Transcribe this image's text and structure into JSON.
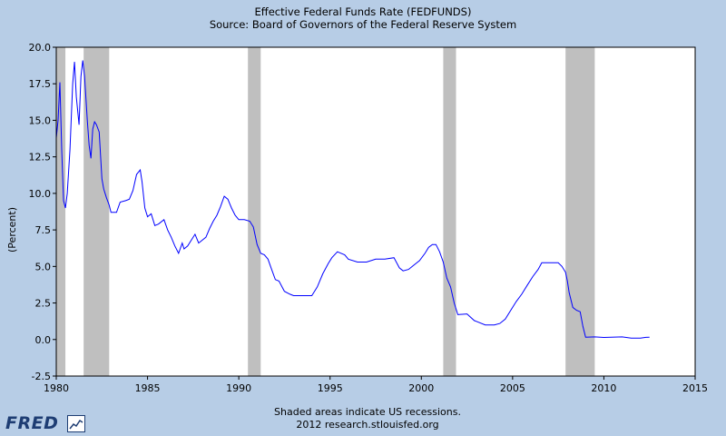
{
  "chart_data": {
    "type": "line",
    "title": "Effective Federal Funds Rate (FEDFUNDS)",
    "subtitle": "Source: Board of Governors of the Federal Reserve System",
    "ylabel": "(Percent)",
    "xlabel": "",
    "xlim": [
      1980,
      2015
    ],
    "ylim": [
      -2.5,
      20.0
    ],
    "x_ticks": [
      1980,
      1985,
      1990,
      1995,
      2000,
      2005,
      2010,
      2015
    ],
    "x_tick_labels": [
      "1980",
      "1985",
      "1990",
      "1995",
      "2000",
      "2005",
      "2010",
      "2015"
    ],
    "y_ticks": [
      -2.5,
      0.0,
      2.5,
      5.0,
      7.5,
      10.0,
      12.5,
      15.0,
      17.5,
      20.0
    ],
    "y_tick_labels": [
      "-2.5",
      "0.0",
      "2.5",
      "5.0",
      "7.5",
      "10.0",
      "12.5",
      "15.0",
      "17.5",
      "20.0"
    ],
    "grid": false,
    "series_color": "#0000ff",
    "recession_color": "#bfbfbf",
    "recessions": [
      [
        1980.0,
        1980.5
      ],
      [
        1981.5,
        1982.9
      ],
      [
        1990.5,
        1991.2
      ],
      [
        2001.2,
        2001.9
      ],
      [
        2007.9,
        2009.5
      ]
    ],
    "series": [
      {
        "name": "FEDFUNDS",
        "x": [
          1980.0,
          1980.1,
          1980.2,
          1980.3,
          1980.4,
          1980.5,
          1980.6,
          1980.75,
          1980.9,
          1981.0,
          1981.1,
          1981.25,
          1981.35,
          1981.45,
          1981.55,
          1981.7,
          1981.8,
          1981.9,
          1982.0,
          1982.1,
          1982.2,
          1982.35,
          1982.5,
          1982.6,
          1982.75,
          1982.9,
          1983.0,
          1983.3,
          1983.5,
          1983.8,
          1984.0,
          1984.2,
          1984.4,
          1984.6,
          1984.7,
          1984.85,
          1985.0,
          1985.2,
          1985.4,
          1985.6,
          1985.9,
          1986.1,
          1986.3,
          1986.5,
          1986.7,
          1986.9,
          1987.0,
          1987.2,
          1987.4,
          1987.6,
          1987.8,
          1988.0,
          1988.2,
          1988.4,
          1988.6,
          1988.8,
          1989.0,
          1989.2,
          1989.4,
          1989.6,
          1989.8,
          1990.0,
          1990.3,
          1990.6,
          1990.8,
          1991.0,
          1991.2,
          1991.4,
          1991.6,
          1991.8,
          1992.0,
          1992.2,
          1992.5,
          1992.8,
          1993.0,
          1993.5,
          1994.0,
          1994.3,
          1994.6,
          1994.9,
          1995.1,
          1995.4,
          1995.8,
          1996.0,
          1996.5,
          1997.0,
          1997.5,
          1998.0,
          1998.5,
          1998.8,
          1999.0,
          1999.3,
          1999.6,
          1999.9,
          2000.2,
          2000.4,
          2000.6,
          2000.8,
          2001.0,
          2001.2,
          2001.4,
          2001.6,
          2001.8,
          2002.0,
          2002.5,
          2002.9,
          2003.0,
          2003.5,
          2004.0,
          2004.3,
          2004.6,
          2004.9,
          2005.2,
          2005.5,
          2005.8,
          2006.1,
          2006.4,
          2006.6,
          2007.0,
          2007.5,
          2007.7,
          2007.9,
          2008.0,
          2008.1,
          2008.3,
          2008.5,
          2008.7,
          2008.85,
          2009.0,
          2009.5,
          2010.0,
          2011.0,
          2011.5,
          2012.0,
          2012.3,
          2012.5
        ],
        "values": [
          13.8,
          15.0,
          17.6,
          13.0,
          9.5,
          9.0,
          10.0,
          13.0,
          17.5,
          19.0,
          16.6,
          14.7,
          18.0,
          19.1,
          18.0,
          15.0,
          13.3,
          12.4,
          14.4,
          14.9,
          14.7,
          14.2,
          11.0,
          10.3,
          9.7,
          9.2,
          8.7,
          8.7,
          9.4,
          9.5,
          9.6,
          10.2,
          11.3,
          11.6,
          10.8,
          9.0,
          8.4,
          8.6,
          7.8,
          7.9,
          8.2,
          7.5,
          7.0,
          6.4,
          5.9,
          6.6,
          6.2,
          6.4,
          6.8,
          7.2,
          6.6,
          6.8,
          7.0,
          7.6,
          8.1,
          8.5,
          9.1,
          9.8,
          9.6,
          9.0,
          8.5,
          8.2,
          8.2,
          8.1,
          7.7,
          6.5,
          5.9,
          5.8,
          5.5,
          4.8,
          4.1,
          4.0,
          3.3,
          3.1,
          3.0,
          3.0,
          3.0,
          3.6,
          4.5,
          5.2,
          5.6,
          6.0,
          5.8,
          5.5,
          5.3,
          5.3,
          5.5,
          5.5,
          5.6,
          4.9,
          4.7,
          4.8,
          5.1,
          5.4,
          5.9,
          6.3,
          6.5,
          6.5,
          6.0,
          5.3,
          4.2,
          3.6,
          2.5,
          1.7,
          1.75,
          1.3,
          1.25,
          1.0,
          1.0,
          1.1,
          1.4,
          2.0,
          2.6,
          3.1,
          3.7,
          4.3,
          4.8,
          5.25,
          5.25,
          5.25,
          5.0,
          4.6,
          4.0,
          3.2,
          2.2,
          2.0,
          1.9,
          0.9,
          0.16,
          0.18,
          0.14,
          0.18,
          0.1,
          0.1,
          0.15,
          0.16
        ]
      }
    ],
    "note_line1": "Shaded areas indicate US recessions.",
    "note_line2": "2012 research.stlouisfed.org"
  },
  "branding": {
    "logo_text": "FRED",
    "logo_icon": "chart-line-icon"
  }
}
